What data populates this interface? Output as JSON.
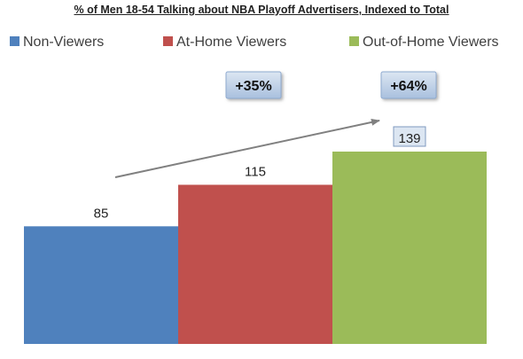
{
  "chart_data": {
    "type": "bar",
    "title": "% of Men 18-54  Talking about NBA Playoff Advertisers, Indexed to Total",
    "xlabel": "",
    "ylabel": "",
    "ylim": [
      0,
      139
    ],
    "grid": false,
    "legend_position": "top",
    "series": [
      {
        "name": "Non-Viewers",
        "value": 85,
        "color": "#4f81bd"
      },
      {
        "name": "At-Home Viewers",
        "value": 115,
        "color": "#c0504d"
      },
      {
        "name": "Out-of-Home Viewers",
        "value": 139,
        "color": "#9bbb59"
      }
    ],
    "annotations": [
      {
        "text": "+35%"
      },
      {
        "text": "+64%"
      }
    ]
  }
}
